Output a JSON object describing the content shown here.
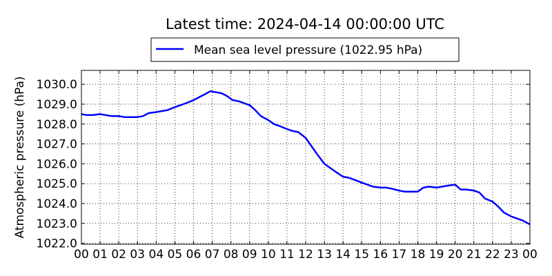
{
  "chart_data": {
    "type": "line",
    "title": "Latest time: 2024-04-14 00:00:00 UTC",
    "xlabel": "",
    "ylabel": "Atmospheric pressure (hPa)",
    "ylim": [
      1021.95,
      1030.7
    ],
    "xlim": [
      0,
      24
    ],
    "grid": true,
    "legend_position": "top-center",
    "x_tick_labels": [
      "00",
      "01",
      "02",
      "03",
      "04",
      "05",
      "06",
      "07",
      "08",
      "09",
      "10",
      "11",
      "12",
      "13",
      "14",
      "15",
      "16",
      "17",
      "18",
      "19",
      "20",
      "21",
      "22",
      "23",
      "00"
    ],
    "y_tick_labels": [
      "1022.0",
      "1023.0",
      "1024.0",
      "1025.0",
      "1026.0",
      "1027.0",
      "1028.0",
      "1029.0",
      "1030.0"
    ],
    "series": [
      {
        "name": "Mean sea level pressure (1022.95 hPa)",
        "color": "#0000ff",
        "x": [
          0,
          0.3,
          0.6,
          1.0,
          1.3,
          1.6,
          2.0,
          2.3,
          2.6,
          3.0,
          3.3,
          3.6,
          4.0,
          4.3,
          4.6,
          5.0,
          5.3,
          5.6,
          6.0,
          6.3,
          6.6,
          6.9,
          7.2,
          7.5,
          7.8,
          8.1,
          8.4,
          8.7,
          9.0,
          9.3,
          9.6,
          10.0,
          10.3,
          10.6,
          11.0,
          11.3,
          11.6,
          12.0,
          12.3,
          12.6,
          13.0,
          13.3,
          13.6,
          14.0,
          14.3,
          14.6,
          15.0,
          15.3,
          15.6,
          16.0,
          16.3,
          16.6,
          17.0,
          17.3,
          17.6,
          18.0,
          18.3,
          18.6,
          19.0,
          19.3,
          19.6,
          20.0,
          20.3,
          20.6,
          21.0,
          21.3,
          21.6,
          22.0,
          22.3,
          22.6,
          23.0,
          23.3,
          23.6,
          24.0
        ],
        "y": [
          1028.5,
          1028.45,
          1028.45,
          1028.5,
          1028.45,
          1028.4,
          1028.4,
          1028.35,
          1028.35,
          1028.35,
          1028.4,
          1028.55,
          1028.6,
          1028.65,
          1028.7,
          1028.85,
          1028.95,
          1029.05,
          1029.2,
          1029.35,
          1029.5,
          1029.65,
          1029.6,
          1029.55,
          1029.4,
          1029.2,
          1029.15,
          1029.05,
          1028.95,
          1028.7,
          1028.4,
          1028.2,
          1028.0,
          1027.9,
          1027.75,
          1027.65,
          1027.6,
          1027.3,
          1026.9,
          1026.5,
          1026.0,
          1025.8,
          1025.6,
          1025.35,
          1025.3,
          1025.2,
          1025.05,
          1024.95,
          1024.85,
          1024.8,
          1024.8,
          1024.75,
          1024.65,
          1024.6,
          1024.6,
          1024.6,
          1024.8,
          1024.85,
          1024.8,
          1024.85,
          1024.9,
          1024.95,
          1024.7,
          1024.7,
          1024.65,
          1024.55,
          1024.25,
          1024.1,
          1023.85,
          1023.55,
          1023.35,
          1023.25,
          1023.15,
          1022.95
        ]
      }
    ]
  }
}
